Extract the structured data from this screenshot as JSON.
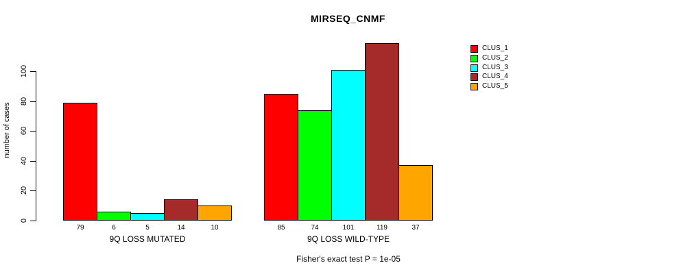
{
  "chart_data": {
    "type": "bar",
    "title": "MIRSEQ_CNMF",
    "ylabel": "number of cases",
    "caption": "Fisher's exact test P = 1e-05",
    "groups": [
      {
        "label": "9Q LOSS MUTATED",
        "values": [
          79,
          6,
          5,
          14,
          10
        ]
      },
      {
        "label": "9Q LOSS WILD-TYPE",
        "values": [
          85,
          74,
          101,
          119,
          37
        ]
      }
    ],
    "legend": {
      "position": "right",
      "entries": [
        {
          "label": "CLUS_1",
          "color": "#FF0000"
        },
        {
          "label": "CLUS_2",
          "color": "#00FF00"
        },
        {
          "label": "CLUS_3",
          "color": "#00FFFF"
        },
        {
          "label": "CLUS_4",
          "color": "#A52A2A"
        },
        {
          "label": "CLUS_5",
          "color": "#FFA500"
        }
      ]
    },
    "y_ticks": [
      0,
      20,
      40,
      60,
      80,
      100
    ],
    "ylim": [
      0,
      100
    ],
    "grid": false,
    "bar_value_labels": true,
    "bar_outline_color": "#000000",
    "background_color": "#FFFFFF"
  }
}
